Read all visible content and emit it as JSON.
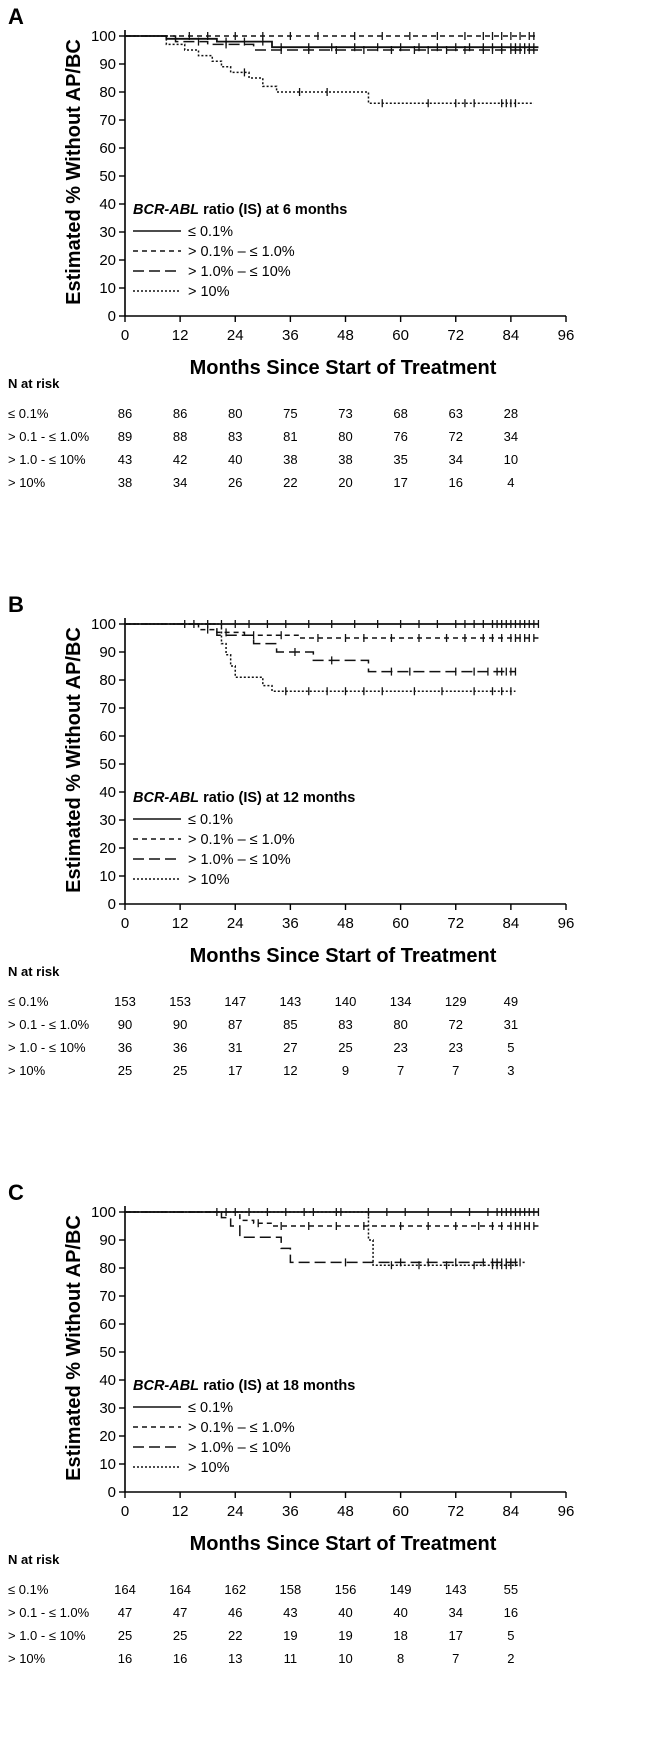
{
  "chart_data": [
    {
      "type": "line",
      "panel_label": "A",
      "ylabel": "Estimated % Without AP/BC",
      "xlabel": "Months Since Start of Treatment",
      "xlim": [
        0,
        96
      ],
      "ylim": [
        0,
        100
      ],
      "xticks": [
        0,
        12,
        24,
        36,
        48,
        60,
        72,
        84,
        96
      ],
      "yticks": [
        0,
        10,
        20,
        30,
        40,
        50,
        60,
        70,
        80,
        90,
        100
      ],
      "legend_title_italic": "BCR-ABL",
      "legend_title_rest": " ratio (IS) at 6 months",
      "series": [
        {
          "name": "≤ 0.1%",
          "style": "solid",
          "x": [
            0,
            9,
            20,
            32,
            90
          ],
          "y": [
            100,
            99,
            98,
            96,
            96
          ],
          "censors": [
            22,
            26,
            30,
            34,
            40,
            45,
            50,
            55,
            60,
            64,
            68,
            72,
            75,
            78,
            80,
            82,
            84,
            85,
            86,
            87,
            88,
            89
          ]
        },
        {
          "name": "> 0.1% – ≤ 1.0%",
          "style": "short-dash",
          "x": [
            0,
            10,
            90
          ],
          "y": [
            100,
            100,
            100
          ],
          "censors": [
            14,
            18,
            24,
            30,
            36,
            42,
            50,
            56,
            62,
            68,
            74,
            78,
            80,
            82,
            84,
            86,
            88,
            89
          ]
        },
        {
          "name": "> 1.0% – ≤ 10%",
          "style": "long-dash",
          "x": [
            0,
            11,
            18,
            28,
            90
          ],
          "y": [
            100,
            98,
            97,
            95,
            95
          ],
          "censors": [
            16,
            22,
            34,
            40,
            46,
            52,
            58,
            63,
            66,
            70,
            74,
            78,
            80,
            82,
            84,
            85,
            86,
            87,
            88,
            89
          ]
        },
        {
          "name": "> 10%",
          "style": "dotted",
          "x": [
            0,
            9,
            13,
            16,
            19,
            21,
            23,
            25,
            27,
            30,
            33,
            35,
            45,
            53,
            89
          ],
          "y": [
            100,
            97,
            95,
            93,
            91,
            89,
            87,
            87,
            85,
            82,
            80,
            80,
            80,
            76,
            76
          ],
          "censors": [
            26,
            38,
            44,
            56,
            66,
            72,
            74,
            76,
            82,
            83,
            84,
            85
          ]
        }
      ],
      "risk_table": {
        "title": "N at risk",
        "rows": [
          {
            "label": "≤ 0.1%",
            "values": [
              "86",
              "86",
              "80",
              "75",
              "73",
              "68",
              "63",
              "28"
            ]
          },
          {
            "label": "> 0.1 - ≤ 1.0%",
            "values": [
              "89",
              "88",
              "83",
              "81",
              "80",
              "76",
              "72",
              "34"
            ]
          },
          {
            "label": "> 1.0 - ≤ 10%",
            "values": [
              "43",
              "42",
              "40",
              "38",
              "38",
              "35",
              "34",
              "10"
            ]
          },
          {
            "label": "> 10%",
            "values": [
              "38",
              "34",
              "26",
              "22",
              "20",
              "17",
              "16",
              "4"
            ]
          }
        ]
      }
    },
    {
      "type": "line",
      "panel_label": "B",
      "ylabel": "Estimated % Without AP/BC",
      "xlabel": "Months Since Start of Treatment",
      "xlim": [
        0,
        96
      ],
      "ylim": [
        0,
        100
      ],
      "xticks": [
        0,
        12,
        24,
        36,
        48,
        60,
        72,
        84,
        96
      ],
      "yticks": [
        0,
        10,
        20,
        30,
        40,
        50,
        60,
        70,
        80,
        90,
        100
      ],
      "legend_title_italic": "BCR-ABL",
      "legend_title_rest": " ratio (IS) at 12 months",
      "series": [
        {
          "name": "≤ 0.1%",
          "style": "solid",
          "x": [
            0,
            90
          ],
          "y": [
            100,
            100
          ],
          "censors": [
            13,
            15,
            18,
            21,
            24,
            27,
            31,
            35,
            40,
            45,
            50,
            55,
            60,
            64,
            68,
            72,
            74,
            76,
            78,
            80,
            81,
            82,
            83,
            84,
            85,
            86,
            87,
            88,
            89,
            90
          ]
        },
        {
          "name": "> 0.1% – ≤ 1.0%",
          "style": "short-dash",
          "x": [
            0,
            16,
            20,
            26,
            38,
            90
          ],
          "y": [
            100,
            98,
            97,
            96,
            95,
            95
          ],
          "censors": [
            18,
            22,
            28,
            34,
            42,
            48,
            52,
            58,
            64,
            70,
            74,
            78,
            80,
            82,
            84,
            85,
            86,
            87,
            88,
            89
          ]
        },
        {
          "name": "> 1.0% – ≤ 10%",
          "style": "long-dash",
          "x": [
            0,
            20,
            28,
            33,
            41,
            53,
            85
          ],
          "y": [
            100,
            96,
            93,
            90,
            87,
            83,
            83
          ],
          "censors": [
            37,
            45,
            58,
            62,
            72,
            76,
            79,
            81,
            82,
            83,
            84,
            85
          ]
        },
        {
          "name": "> 10%",
          "style": "dotted",
          "x": [
            0,
            21,
            22,
            23,
            24,
            28,
            30,
            32,
            85
          ],
          "y": [
            100,
            93,
            89,
            85,
            81,
            81,
            78,
            76,
            76
          ],
          "censors": [
            35,
            40,
            44,
            48,
            52,
            56,
            63,
            69,
            76,
            80,
            82,
            84
          ]
        }
      ],
      "risk_table": {
        "title": "N at risk",
        "rows": [
          {
            "label": "≤ 0.1%",
            "values": [
              "153",
              "153",
              "147",
              "143",
              "140",
              "134",
              "129",
              "49"
            ]
          },
          {
            "label": "> 0.1 - ≤ 1.0%",
            "values": [
              "90",
              "90",
              "87",
              "85",
              "83",
              "80",
              "72",
              "31"
            ]
          },
          {
            "label": "> 1.0 - ≤ 10%",
            "values": [
              "36",
              "36",
              "31",
              "27",
              "25",
              "23",
              "23",
              "5"
            ]
          },
          {
            "label": "> 10%",
            "values": [
              "25",
              "25",
              "17",
              "12",
              "9",
              "7",
              "7",
              "3"
            ]
          }
        ]
      }
    },
    {
      "type": "line",
      "panel_label": "C",
      "ylabel": "Estimated % Without AP/BC",
      "xlabel": "Months Since Start of Treatment",
      "xlim": [
        0,
        96
      ],
      "ylim": [
        0,
        100
      ],
      "xticks": [
        0,
        12,
        24,
        36,
        48,
        60,
        72,
        84,
        96
      ],
      "yticks": [
        0,
        10,
        20,
        30,
        40,
        50,
        60,
        70,
        80,
        90,
        100
      ],
      "legend_title_italic": "BCR-ABL",
      "legend_title_rest": " ratio (IS) at 18 months",
      "series": [
        {
          "name": "≤ 0.1%",
          "style": "solid",
          "x": [
            0,
            90
          ],
          "y": [
            100,
            100
          ],
          "censors": [
            20,
            22,
            24,
            27,
            31,
            35,
            41,
            47,
            53,
            57,
            61,
            66,
            71,
            75,
            79,
            81,
            82,
            83,
            84,
            85,
            86,
            87,
            88,
            89,
            90
          ]
        },
        {
          "name": "> 0.1% – ≤ 1.0%",
          "style": "short-dash",
          "x": [
            0,
            25,
            28,
            32,
            90
          ],
          "y": [
            100,
            97,
            96,
            95,
            95
          ],
          "censors": [
            29,
            34,
            40,
            46,
            52,
            60,
            66,
            72,
            77,
            80,
            82,
            84,
            85,
            86,
            87,
            88,
            89
          ]
        },
        {
          "name": "> 1.0% – ≤ 10%",
          "style": "long-dash",
          "x": [
            0,
            21,
            23,
            25,
            33,
            34,
            36,
            87
          ],
          "y": [
            100,
            98,
            95,
            91,
            91,
            87,
            82,
            82
          ],
          "censors": [
            48,
            60,
            66,
            72,
            78,
            80,
            81,
            82,
            83,
            84,
            85,
            86
          ]
        },
        {
          "name": "> 10%",
          "style": "dotted",
          "x": [
            0,
            30,
            53,
            54,
            86
          ],
          "y": [
            100,
            100,
            90,
            81,
            81
          ],
          "censors": [
            39,
            46,
            58,
            64,
            70,
            76,
            80,
            81,
            82,
            83,
            84
          ]
        }
      ],
      "risk_table": {
        "title": "N at risk",
        "rows": [
          {
            "label": "≤ 0.1%",
            "values": [
              "164",
              "164",
              "162",
              "158",
              "156",
              "149",
              "143",
              "55"
            ]
          },
          {
            "label": "> 0.1 - ≤ 1.0%",
            "values": [
              "47",
              "47",
              "46",
              "43",
              "40",
              "40",
              "34",
              "16"
            ]
          },
          {
            "label": "> 1.0 - ≤ 10%",
            "values": [
              "25",
              "25",
              "22",
              "19",
              "19",
              "18",
              "17",
              "5"
            ]
          },
          {
            "label": "> 10%",
            "values": [
              "16",
              "16",
              "13",
              "11",
              "10",
              "8",
              "7",
              "2"
            ]
          }
        ]
      }
    }
  ]
}
